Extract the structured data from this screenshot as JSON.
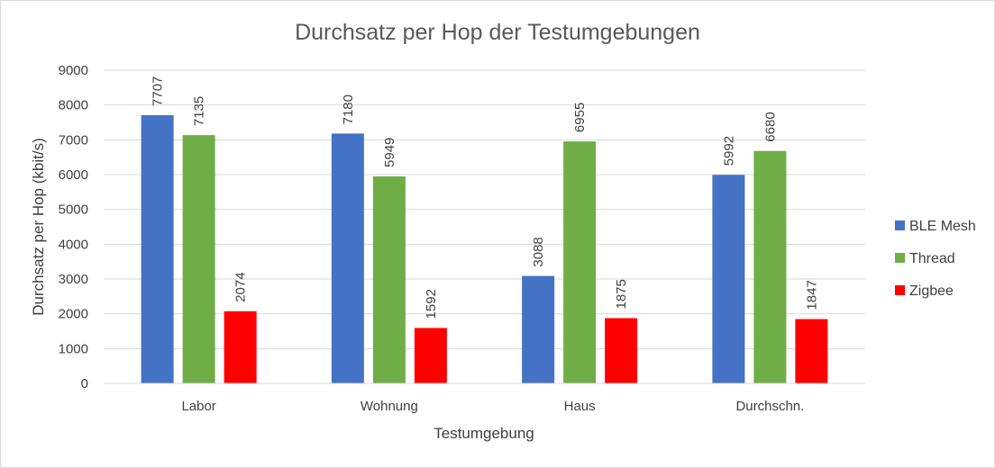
{
  "chart_data": {
    "type": "bar",
    "title": "Durchsatz per Hop der Testumgebungen",
    "xlabel": "Testumgebung",
    "ylabel": "Durchsatz per Hop (kbit/s)",
    "ylim": [
      0,
      9000
    ],
    "yticks": [
      0,
      1000,
      2000,
      3000,
      4000,
      5000,
      6000,
      7000,
      8000,
      9000
    ],
    "grid": true,
    "legend_position": "right",
    "categories": [
      "Labor",
      "Wohnung",
      "Haus",
      "Durchschn."
    ],
    "series": [
      {
        "name": "BLE Mesh",
        "color": "#4472c4",
        "values": [
          7707,
          7180,
          3088,
          5992
        ]
      },
      {
        "name": "Thread",
        "color": "#70ad47",
        "values": [
          7135,
          5949,
          6955,
          6680
        ]
      },
      {
        "name": "Zigbee",
        "color": "#ff0000",
        "values": [
          2074,
          1592,
          1875,
          1847
        ]
      }
    ]
  }
}
